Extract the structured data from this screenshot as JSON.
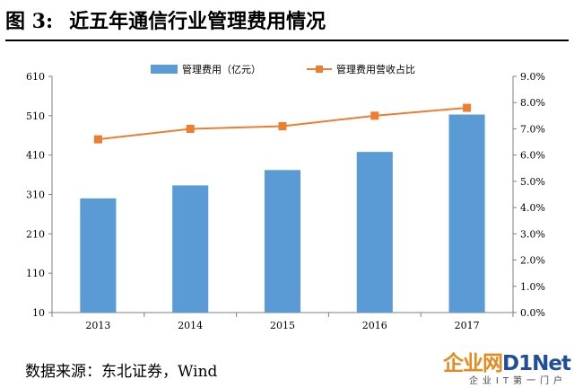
{
  "header": {
    "figure_label": "图 3:",
    "title": "近五年通信行业管理费用情况"
  },
  "footer": {
    "source_label": "数据来源：",
    "source_text": "东北证券，Wind"
  },
  "watermark": {
    "brand_prefix": "企业网",
    "brand_d1": "D1",
    "brand_suffix": "Net",
    "tagline": "企业IT第一门户"
  },
  "colors": {
    "bar": "#5b9bd5",
    "line": "#ed7d31",
    "axis": "#7f7f7f"
  },
  "chart_data": {
    "type": "bar",
    "categories": [
      "2013",
      "2014",
      "2015",
      "2016",
      "2017"
    ],
    "series": [
      {
        "name": "管理费用（亿元）",
        "type": "bar",
        "axis": "left",
        "values": [
          300,
          333,
          372,
          418,
          513
        ]
      },
      {
        "name": "管理费用营收占比",
        "type": "line",
        "axis": "right",
        "values": [
          6.6,
          7.0,
          7.1,
          7.5,
          7.8
        ]
      }
    ],
    "left_axis": {
      "ylim": [
        10,
        610
      ],
      "ticks": [
        10,
        110,
        210,
        310,
        410,
        510,
        610
      ]
    },
    "right_axis": {
      "ylim": [
        0,
        9
      ],
      "ticks": [
        "0.0%",
        "1.0%",
        "2.0%",
        "3.0%",
        "4.0%",
        "5.0%",
        "6.0%",
        "7.0%",
        "8.0%",
        "9.0%"
      ]
    },
    "xlabel": "",
    "ylabel": "",
    "legend_position": "top",
    "grid": false
  }
}
